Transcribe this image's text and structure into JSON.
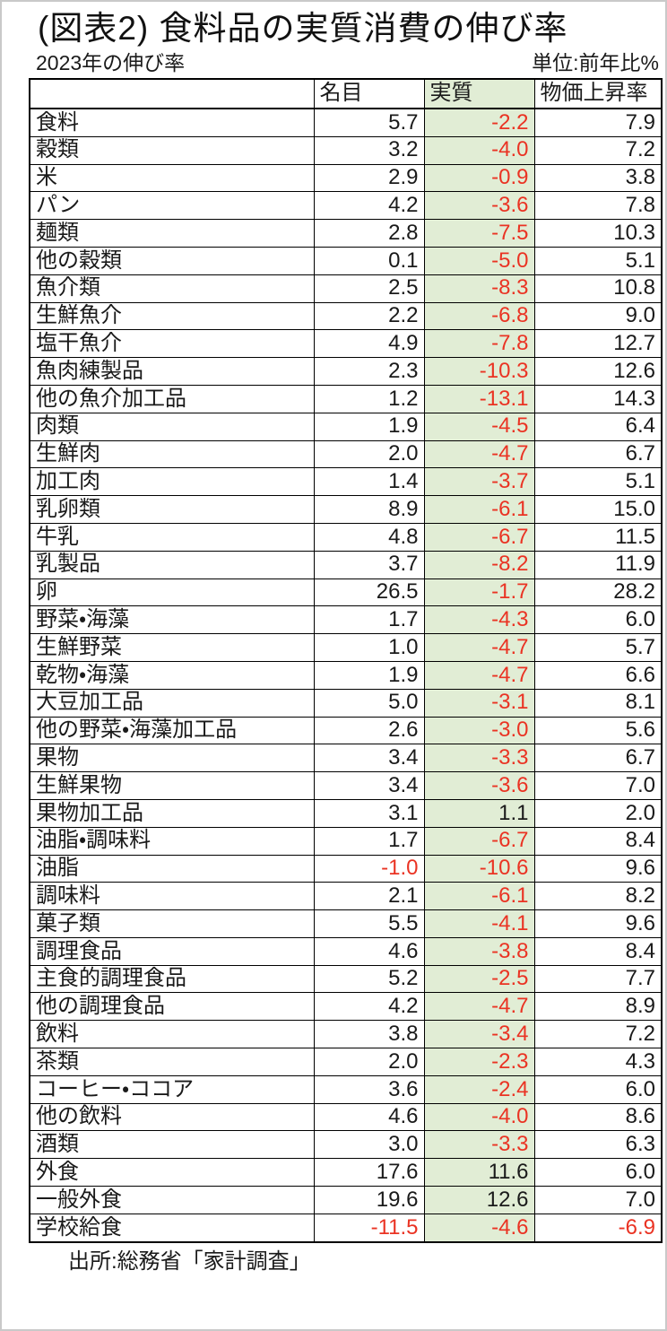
{
  "title": "(図表2) 食料品の実質消費の伸び率",
  "subtitle_left": "2023年の伸び率",
  "subtitle_right": "単位:前年比%",
  "source": "出所:総務省「家計調査」",
  "colors": {
    "real_column_bg": "#e1edd5",
    "negative_value": "#ea3323",
    "border": "#000000",
    "page_frame": "#c9c9c9"
  },
  "chart_data": {
    "type": "table",
    "title": "(図表2) 食料品の実質消費の伸び率",
    "subtitle": "2023年の伸び率",
    "unit": "前年比%",
    "columns": [
      "",
      "名目",
      "実質",
      "物価上昇率"
    ],
    "rows": [
      {
        "label": "食料",
        "nominal": "5.7",
        "real": "-2.2",
        "inflation": "7.9"
      },
      {
        "label": "穀類",
        "nominal": "3.2",
        "real": "-4.0",
        "inflation": "7.2"
      },
      {
        "label": "米",
        "nominal": "2.9",
        "real": "-0.9",
        "inflation": "3.8"
      },
      {
        "label": "パン",
        "nominal": "4.2",
        "real": "-3.6",
        "inflation": "7.8"
      },
      {
        "label": "麺類",
        "nominal": "2.8",
        "real": "-7.5",
        "inflation": "10.3"
      },
      {
        "label": "他の穀類",
        "nominal": "0.1",
        "real": "-5.0",
        "inflation": "5.1"
      },
      {
        "label": "魚介類",
        "nominal": "2.5",
        "real": "-8.3",
        "inflation": "10.8"
      },
      {
        "label": "生鮮魚介",
        "nominal": "2.2",
        "real": "-6.8",
        "inflation": "9.0"
      },
      {
        "label": "塩干魚介",
        "nominal": "4.9",
        "real": "-7.8",
        "inflation": "12.7"
      },
      {
        "label": "魚肉練製品",
        "nominal": "2.3",
        "real": "-10.3",
        "inflation": "12.6"
      },
      {
        "label": "他の魚介加工品",
        "nominal": "1.2",
        "real": "-13.1",
        "inflation": "14.3"
      },
      {
        "label": "肉類",
        "nominal": "1.9",
        "real": "-4.5",
        "inflation": "6.4"
      },
      {
        "label": "生鮮肉",
        "nominal": "2.0",
        "real": "-4.7",
        "inflation": "6.7"
      },
      {
        "label": "加工肉",
        "nominal": "1.4",
        "real": "-3.7",
        "inflation": "5.1"
      },
      {
        "label": "乳卵類",
        "nominal": "8.9",
        "real": "-6.1",
        "inflation": "15.0"
      },
      {
        "label": "牛乳",
        "nominal": "4.8",
        "real": "-6.7",
        "inflation": "11.5"
      },
      {
        "label": "乳製品",
        "nominal": "3.7",
        "real": "-8.2",
        "inflation": "11.9"
      },
      {
        "label": "卵",
        "nominal": "26.5",
        "real": "-1.7",
        "inflation": "28.2"
      },
      {
        "label": "野菜・海藻",
        "nominal": "1.7",
        "real": "-4.3",
        "inflation": "6.0"
      },
      {
        "label": "生鮮野菜",
        "nominal": "1.0",
        "real": "-4.7",
        "inflation": "5.7"
      },
      {
        "label": "乾物・海藻",
        "nominal": "1.9",
        "real": "-4.7",
        "inflation": "6.6"
      },
      {
        "label": "大豆加工品",
        "nominal": "5.0",
        "real": "-3.1",
        "inflation": "8.1"
      },
      {
        "label": "他の野菜・海藻加工品",
        "nominal": "2.6",
        "real": "-3.0",
        "inflation": "5.6"
      },
      {
        "label": "果物",
        "nominal": "3.4",
        "real": "-3.3",
        "inflation": "6.7"
      },
      {
        "label": "生鮮果物",
        "nominal": "3.4",
        "real": "-3.6",
        "inflation": "7.0"
      },
      {
        "label": "果物加工品",
        "nominal": "3.1",
        "real": "1.1",
        "inflation": "2.0"
      },
      {
        "label": "油脂・調味料",
        "nominal": "1.7",
        "real": "-6.7",
        "inflation": "8.4"
      },
      {
        "label": "油脂",
        "nominal": "-1.0",
        "real": "-10.6",
        "inflation": "9.6"
      },
      {
        "label": "調味料",
        "nominal": "2.1",
        "real": "-6.1",
        "inflation": "8.2"
      },
      {
        "label": "菓子類",
        "nominal": "5.5",
        "real": "-4.1",
        "inflation": "9.6"
      },
      {
        "label": "調理食品",
        "nominal": "4.6",
        "real": "-3.8",
        "inflation": "8.4"
      },
      {
        "label": "主食的調理食品",
        "nominal": "5.2",
        "real": "-2.5",
        "inflation": "7.7"
      },
      {
        "label": "他の調理食品",
        "nominal": "4.2",
        "real": "-4.7",
        "inflation": "8.9"
      },
      {
        "label": "飲料",
        "nominal": "3.8",
        "real": "-3.4",
        "inflation": "7.2"
      },
      {
        "label": "茶類",
        "nominal": "2.0",
        "real": "-2.3",
        "inflation": "4.3"
      },
      {
        "label": "コーヒー・ココア",
        "nominal": "3.6",
        "real": "-2.4",
        "inflation": "6.0"
      },
      {
        "label": "他の飲料",
        "nominal": "4.6",
        "real": "-4.0",
        "inflation": "8.6"
      },
      {
        "label": "酒類",
        "nominal": "3.0",
        "real": "-3.3",
        "inflation": "6.3"
      },
      {
        "label": "外食",
        "nominal": "17.6",
        "real": "11.6",
        "inflation": "6.0"
      },
      {
        "label": "一般外食",
        "nominal": "19.6",
        "real": "12.6",
        "inflation": "7.0"
      },
      {
        "label": "学校給食",
        "nominal": "-11.5",
        "real": "-4.6",
        "inflation": "-6.9"
      }
    ]
  }
}
